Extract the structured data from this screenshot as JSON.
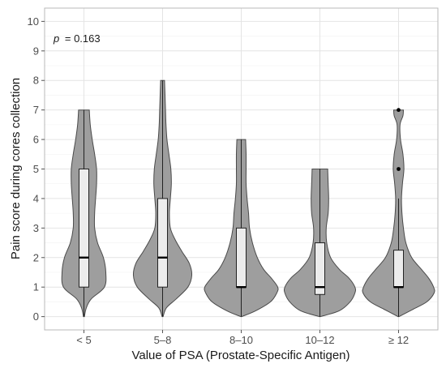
{
  "chart_data": {
    "type": "violin",
    "title": "",
    "xlabel": "Value of PSA (Prostate-Specific Antigen)",
    "ylabel": "Pain score during cores collection",
    "ylim": [
      -0.45,
      10.45
    ],
    "yticks": [
      0,
      1,
      2,
      3,
      4,
      5,
      6,
      7,
      8,
      9,
      10
    ],
    "grid": true,
    "legend": "none",
    "annotation_label": "p",
    "annotation_value": "= 0.163",
    "categories": [
      "< 5",
      "5–8",
      "8–10",
      "10–12",
      "≥ 12"
    ],
    "groups": [
      {
        "category": "< 5",
        "box": {
          "q1": 1,
          "median": 2,
          "q3": 5,
          "whisker_low": 0,
          "whisker_high": 7
        },
        "outliers": [],
        "density": [
          [
            0,
            0.01
          ],
          [
            0.3,
            0.05
          ],
          [
            0.6,
            0.15
          ],
          [
            1,
            0.42
          ],
          [
            1.5,
            0.45
          ],
          [
            2,
            0.4
          ],
          [
            2.5,
            0.28
          ],
          [
            3,
            0.22
          ],
          [
            3.5,
            0.22
          ],
          [
            4,
            0.24
          ],
          [
            4.5,
            0.26
          ],
          [
            5,
            0.26
          ],
          [
            5.5,
            0.22
          ],
          [
            6,
            0.17
          ],
          [
            6.5,
            0.13
          ],
          [
            7,
            0.11
          ]
        ]
      },
      {
        "category": "5–8",
        "box": {
          "q1": 1,
          "median": 2,
          "q3": 4,
          "whisker_low": 0,
          "whisker_high": 8
        },
        "outliers": [],
        "density": [
          [
            0,
            0.01
          ],
          [
            0.3,
            0.08
          ],
          [
            0.6,
            0.28
          ],
          [
            1,
            0.52
          ],
          [
            1.4,
            0.6
          ],
          [
            1.8,
            0.55
          ],
          [
            2.2,
            0.4
          ],
          [
            2.6,
            0.26
          ],
          [
            3,
            0.16
          ],
          [
            3.5,
            0.14
          ],
          [
            4,
            0.16
          ],
          [
            4.5,
            0.18
          ],
          [
            5,
            0.17
          ],
          [
            5.5,
            0.13
          ],
          [
            6,
            0.09
          ],
          [
            6.5,
            0.07
          ],
          [
            7,
            0.06
          ],
          [
            7.5,
            0.05
          ],
          [
            8,
            0.04
          ]
        ]
      },
      {
        "category": "8–10",
        "box": {
          "q1": 1,
          "median": 1,
          "q3": 3,
          "whisker_low": 0,
          "whisker_high": 6
        },
        "outliers": [],
        "density": [
          [
            0,
            0.01
          ],
          [
            0.2,
            0.3
          ],
          [
            0.5,
            0.6
          ],
          [
            0.8,
            0.73
          ],
          [
            1,
            0.75
          ],
          [
            1.3,
            0.62
          ],
          [
            1.6,
            0.46
          ],
          [
            2,
            0.33
          ],
          [
            2.5,
            0.23
          ],
          [
            3,
            0.17
          ],
          [
            3.5,
            0.15
          ],
          [
            4,
            0.12
          ],
          [
            4.5,
            0.1
          ],
          [
            5,
            0.1
          ],
          [
            5.5,
            0.1
          ],
          [
            6,
            0.09
          ]
        ]
      },
      {
        "category": "10–12",
        "box": {
          "q1": 0.75,
          "median": 1,
          "q3": 2.5,
          "whisker_low": 0,
          "whisker_high": 5
        },
        "outliers": [],
        "density": [
          [
            0,
            0.01
          ],
          [
            0.2,
            0.4
          ],
          [
            0.5,
            0.62
          ],
          [
            0.8,
            0.72
          ],
          [
            1,
            0.72
          ],
          [
            1.3,
            0.6
          ],
          [
            1.6,
            0.4
          ],
          [
            2,
            0.22
          ],
          [
            2.5,
            0.14
          ],
          [
            3,
            0.13
          ],
          [
            3.5,
            0.17
          ],
          [
            4,
            0.18
          ],
          [
            4.5,
            0.17
          ],
          [
            5,
            0.16
          ]
        ]
      },
      {
        "category": "≥ 12",
        "box": {
          "q1": 1,
          "median": 1,
          "q3": 2.25,
          "whisker_low": 0,
          "whisker_high": 4
        },
        "outliers": [
          5,
          7
        ],
        "density": [
          [
            0,
            0.01
          ],
          [
            0.25,
            0.3
          ],
          [
            0.5,
            0.58
          ],
          [
            0.8,
            0.73
          ],
          [
            1,
            0.72
          ],
          [
            1.3,
            0.62
          ],
          [
            1.6,
            0.47
          ],
          [
            2,
            0.27
          ],
          [
            2.5,
            0.15
          ],
          [
            3,
            0.1
          ],
          [
            3.5,
            0.07
          ],
          [
            4,
            0.06
          ],
          [
            4.5,
            0.08
          ],
          [
            5,
            0.11
          ],
          [
            5.5,
            0.09
          ],
          [
            6,
            0.04
          ],
          [
            6.5,
            0.03
          ],
          [
            6.8,
            0.09
          ],
          [
            7,
            0.1
          ]
        ]
      }
    ]
  },
  "colors": {
    "violin_fill": "#9e9e9e",
    "violin_stroke": "#4a4a4a",
    "box_fill": "#ececec",
    "box_stroke": "#222222",
    "grid_major": "#e4e4e4",
    "grid_minor": "#f2f2f2",
    "panel_border": "#b8b8b8"
  }
}
